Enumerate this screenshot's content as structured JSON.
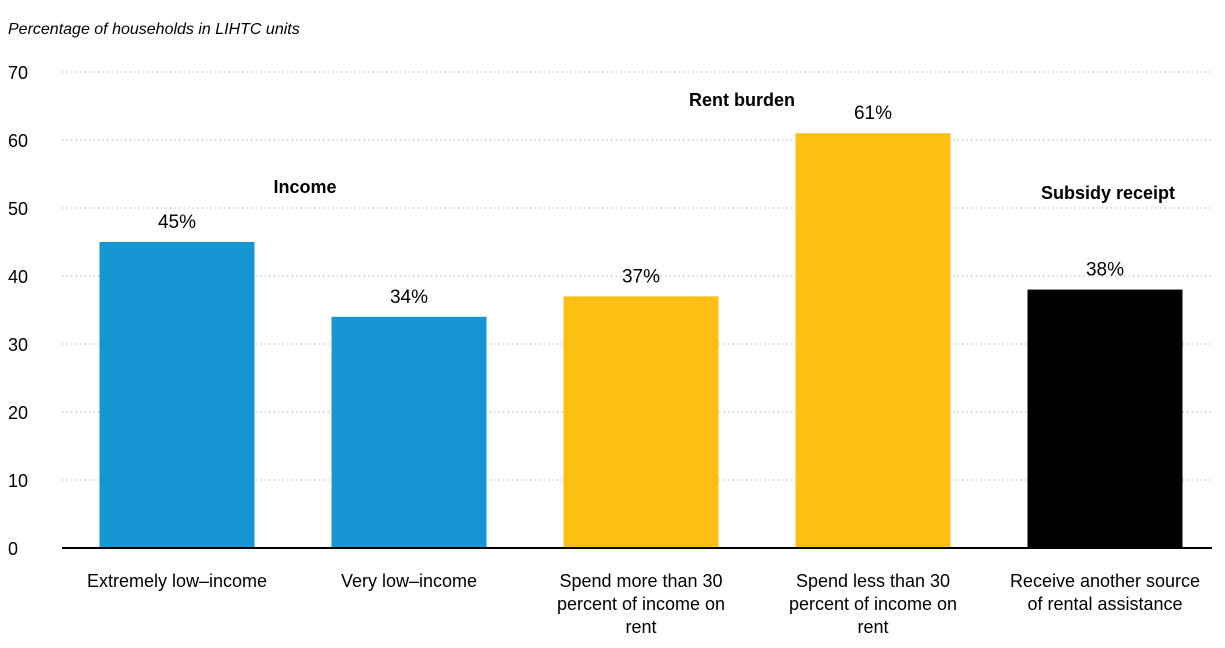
{
  "chart_data": {
    "type": "bar",
    "title": "",
    "ylabel": "Percentage of households in LIHTC units",
    "xlabel": "",
    "ylim": [
      0,
      70
    ],
    "yticks": [
      0,
      10,
      20,
      30,
      40,
      50,
      60,
      70
    ],
    "grid": true,
    "categories": [
      [
        "Extremely low–income"
      ],
      [
        "Very low–income"
      ],
      [
        "Spend more than 30",
        "percent of income on",
        "rent"
      ],
      [
        "Spend less than 30",
        "percent of income on",
        "rent"
      ],
      [
        "Receive another source",
        "of rental assistance"
      ]
    ],
    "values": [
      45,
      34,
      37,
      61,
      38
    ],
    "value_labels": [
      "45%",
      "34%",
      "37%",
      "61%",
      "38%"
    ],
    "bar_colors": [
      "#1696d2",
      "#1696d2",
      "#fdbf11",
      "#fdbf11",
      "#000000"
    ],
    "groups": [
      {
        "label": "Income",
        "bars": [
          0,
          1
        ],
        "color": "#1696d2"
      },
      {
        "label": "Rent burden",
        "bars": [
          2,
          3
        ],
        "color": "#fdbf11"
      },
      {
        "label": "Subsidy receipt",
        "bars": [
          4
        ],
        "color": "#000000"
      }
    ]
  }
}
